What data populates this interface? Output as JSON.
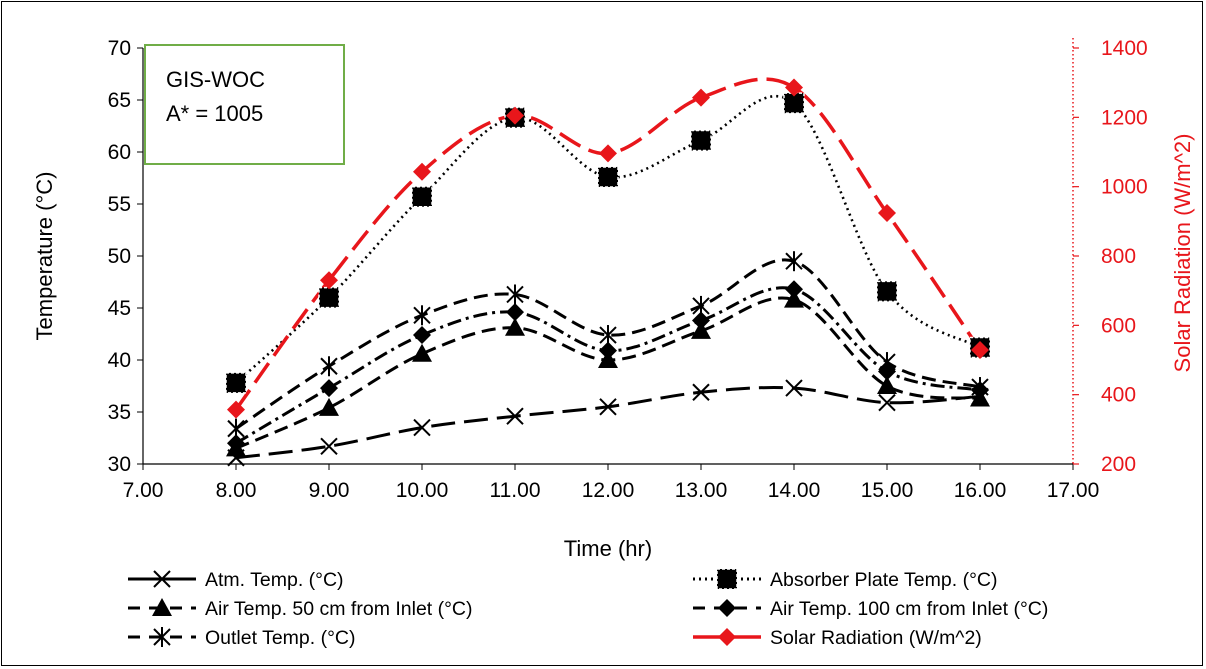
{
  "chart_data": {
    "type": "line",
    "annotation": [
      "GIS-WOC",
      "A* = 1005"
    ],
    "xlabel": "Time (hr)",
    "ylabel": "Temperature (°C)",
    "y2label": "Solar Radiation (W/m^2)",
    "xlim": [
      7,
      17
    ],
    "ylim": [
      30,
      70
    ],
    "y2lim": [
      200,
      1400
    ],
    "x_ticks": [
      "7.00",
      "8.00",
      "9.00",
      "10.00",
      "11.00",
      "12.00",
      "13.00",
      "14.00",
      "15.00",
      "16.00",
      "17.00"
    ],
    "y_ticks": [
      "30",
      "35",
      "40",
      "45",
      "50",
      "55",
      "60",
      "65",
      "70"
    ],
    "y2_ticks": [
      "200",
      "400",
      "600",
      "800",
      "1000",
      "1200",
      "1400"
    ],
    "x": [
      8,
      9,
      10,
      11,
      12,
      13,
      14,
      15,
      16
    ],
    "legend_position": "bottom",
    "series": [
      {
        "name": "Atm. Temp. (°C)",
        "axis": "left",
        "color": "#000000",
        "dash": "long-dash",
        "marker": "x",
        "values": [
          30.6,
          31.7,
          33.5,
          34.6,
          35.5,
          36.9,
          37.3,
          35.9,
          36.5
        ]
      },
      {
        "name": "Absorber Plate Temp. (°C)",
        "axis": "left",
        "color": "#000000",
        "dash": "dot",
        "marker": "square",
        "values": [
          37.8,
          46.0,
          55.7,
          63.3,
          57.6,
          61.1,
          64.7,
          46.6,
          41.2
        ]
      },
      {
        "name": "Air Temp. 50 cm from Inlet (°C)",
        "axis": "left",
        "color": "#000000",
        "dash": "dash",
        "marker": "triangle",
        "values": [
          31.5,
          35.4,
          40.6,
          43.1,
          40.0,
          42.8,
          45.8,
          37.5,
          36.3
        ]
      },
      {
        "name": "Air Temp. 100 cm from Inlet (°C)",
        "axis": "left",
        "color": "#000000",
        "dash": "dash-dot",
        "marker": "diamond",
        "values": [
          32.0,
          37.3,
          42.4,
          44.6,
          40.9,
          43.8,
          46.8,
          38.9,
          37.1
        ]
      },
      {
        "name": "Outlet Temp. (°C)",
        "axis": "left",
        "color": "#000000",
        "dash": "dash",
        "marker": "asterisk",
        "values": [
          33.4,
          39.4,
          44.3,
          46.3,
          42.4,
          45.2,
          49.5,
          39.8,
          37.4
        ]
      },
      {
        "name": "Solar Radiation (W/m^2)",
        "axis": "right",
        "color": "#e8161b",
        "dash": "long-dash",
        "marker": "diamond",
        "values": [
          357,
          730,
          1043,
          1205,
          1096,
          1257,
          1286,
          924,
          529
        ]
      }
    ]
  }
}
